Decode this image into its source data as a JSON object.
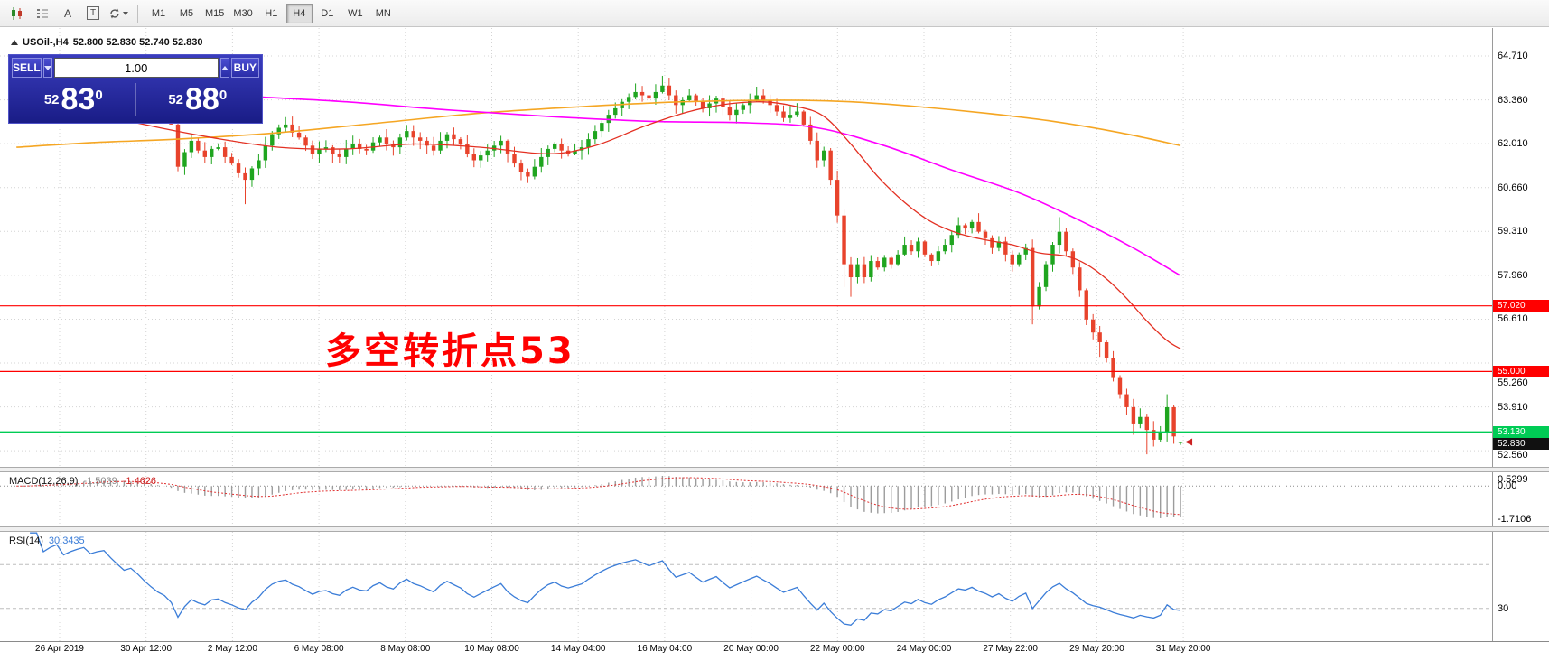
{
  "toolbar": {
    "icons": [
      {
        "name": "candlestick-chart-icon"
      },
      {
        "name": "indicators-icon"
      },
      {
        "name": "text-label-icon",
        "label": "A"
      },
      {
        "name": "textbox-icon",
        "label": "T"
      },
      {
        "name": "cycle-icon"
      }
    ],
    "timeframes": [
      "M1",
      "M5",
      "M15",
      "M30",
      "H1",
      "H4",
      "D1",
      "W1",
      "MN"
    ],
    "active_timeframe": "H4"
  },
  "chart": {
    "symbol_period": "USOil-,H4",
    "ohlc": "52.800 52.830 52.740 52.830"
  },
  "trade_panel": {
    "sell_label": "SELL",
    "buy_label": "BUY",
    "volume": "1.00",
    "sell_price": {
      "small": "52",
      "big": "83",
      "sup": "0"
    },
    "buy_price": {
      "small": "52",
      "big": "88",
      "sup": "0"
    }
  },
  "annotation": {
    "text": "多空转折点53",
    "color": "#ff0000"
  },
  "chart_data": {
    "type": "candlestick",
    "symbol": "USOil-",
    "period": "H4",
    "last_candle": {
      "open": 52.8,
      "high": 52.83,
      "low": 52.74,
      "close": 52.83
    },
    "colors": {
      "up": "#1fa51f",
      "down": "#e8432c"
    },
    "price_axis": {
      "labels": [
        "64.710",
        "63.360",
        "62.010",
        "60.660",
        "59.310",
        "57.960",
        "56.610",
        "55.260",
        "53.910",
        "52.560"
      ],
      "step": 1.35
    },
    "time_axis": [
      "26 Apr 2019",
      "30 Apr 12:00",
      "2 May 12:00",
      "6 May 08:00",
      "8 May 08:00",
      "10 May 08:00",
      "14 May 04:00",
      "16 May 04:00",
      "20 May 00:00",
      "22 May 00:00",
      "24 May 00:00",
      "27 May 22:00",
      "29 May 20:00",
      "31 May 20:00"
    ],
    "hlines": [
      {
        "price": 57.02,
        "label": "57.020",
        "color": "#FF0000",
        "width": 1.2
      },
      {
        "price": 55.0,
        "label": "55.000",
        "color": "#FF0000",
        "width": 1.2
      },
      {
        "price": 53.13,
        "label": "53.130",
        "color": "#00CC55",
        "width": 2
      },
      {
        "price": 52.83,
        "label": "52.830",
        "color": "#A8A8A8",
        "width": 1,
        "dash": "4,3",
        "label_bg": "#111111"
      }
    ],
    "pre_closes": [
      63.05,
      63.2,
      63.35,
      63.5,
      63.4,
      63.55,
      63.7,
      63.6,
      63.75,
      63.9,
      64.05,
      63.95,
      64.1,
      64.2,
      64.05,
      63.9,
      63.75,
      63.85,
      63.7,
      63.5,
      63.3,
      63.1,
      62.95,
      62.6
    ],
    "closes": [
      61.3,
      61.75,
      62.1,
      61.8,
      61.6,
      61.85,
      61.9,
      61.6,
      61.4,
      61.1,
      60.9,
      61.25,
      61.5,
      61.95,
      62.3,
      62.5,
      62.6,
      62.35,
      62.2,
      61.95,
      61.7,
      61.85,
      61.9,
      61.7,
      61.6,
      61.85,
      62.0,
      61.85,
      61.8,
      62.05,
      62.2,
      62.0,
      61.9,
      62.2,
      62.4,
      62.2,
      62.1,
      61.95,
      61.8,
      62.1,
      62.3,
      62.15,
      62.0,
      61.7,
      61.5,
      61.65,
      61.8,
      61.95,
      62.1,
      61.7,
      61.4,
      61.15,
      61.0,
      61.3,
      61.6,
      61.85,
      62.0,
      61.8,
      61.7,
      61.8,
      61.9,
      62.15,
      62.4,
      62.65,
      62.9,
      63.1,
      63.3,
      63.45,
      63.6,
      63.5,
      63.4,
      63.6,
      63.8,
      63.5,
      63.2,
      63.35,
      63.5,
      63.3,
      63.1,
      63.25,
      63.4,
      63.15,
      62.9,
      63.05,
      63.2,
      63.35,
      63.5,
      63.35,
      63.2,
      63.0,
      62.8,
      62.9,
      63.0,
      62.6,
      62.1,
      61.5,
      61.8,
      60.9,
      59.8,
      58.3,
      57.9,
      58.3,
      57.9,
      58.4,
      58.2,
      58.5,
      58.3,
      58.6,
      58.9,
      58.7,
      59.0,
      58.6,
      58.4,
      58.7,
      58.9,
      59.2,
      59.5,
      59.4,
      59.6,
      59.3,
      59.1,
      58.8,
      59.0,
      58.6,
      58.3,
      58.6,
      58.8,
      57.0,
      57.6,
      58.3,
      58.9,
      59.3,
      58.7,
      58.2,
      57.5,
      56.6,
      56.2,
      55.9,
      55.4,
      54.8,
      54.3,
      53.9,
      53.4,
      53.6,
      53.2,
      52.9,
      53.1,
      53.9,
      53.0,
      52.83
    ],
    "wick_overrides": {
      "10": {
        "l": 60.15
      },
      "72": {
        "h": 64.1
      },
      "99": {
        "l": 57.6
      },
      "100": {
        "l": 57.3
      },
      "116": {
        "h": 59.75
      },
      "127": {
        "l": 56.45
      },
      "131": {
        "h": 59.75
      },
      "137": {
        "h": 56.4,
        "l": 55.45
      },
      "142": {
        "l": 53.05
      },
      "144": {
        "l": 52.45
      },
      "147": {
        "h": 54.3
      },
      "149": {
        "o": 52.8,
        "h": 52.83,
        "l": 52.74,
        "c": 52.83
      }
    },
    "ma_lines": [
      {
        "name": "ma-slow-orange",
        "color": "#f5a623",
        "width": 1.6,
        "points": [
          [
            -24,
            61.9
          ],
          [
            -12,
            62.05
          ],
          [
            0,
            62.15
          ],
          [
            15,
            62.35
          ],
          [
            30,
            62.65
          ],
          [
            45,
            62.95
          ],
          [
            60,
            63.15
          ],
          [
            75,
            63.3
          ],
          [
            90,
            63.35
          ],
          [
            100,
            63.3
          ],
          [
            110,
            63.15
          ],
          [
            120,
            62.95
          ],
          [
            130,
            62.7
          ],
          [
            140,
            62.35
          ],
          [
            149,
            61.95
          ]
        ]
      },
      {
        "name": "ma-medium-magenta",
        "color": "#ff00ff",
        "width": 1.6,
        "points": [
          [
            -24,
            63.95
          ],
          [
            -12,
            63.75
          ],
          [
            0,
            63.6
          ],
          [
            12,
            63.45
          ],
          [
            25,
            63.3
          ],
          [
            40,
            63.05
          ],
          [
            55,
            62.85
          ],
          [
            70,
            62.7
          ],
          [
            85,
            62.65
          ],
          [
            95,
            62.5
          ],
          [
            105,
            61.95
          ],
          [
            115,
            61.2
          ],
          [
            125,
            60.5
          ],
          [
            134,
            59.65
          ],
          [
            142,
            58.8
          ],
          [
            149,
            57.95
          ]
        ]
      },
      {
        "name": "ma-fast-red",
        "color": "#e33022",
        "width": 1.3,
        "points": [
          [
            -24,
            63.6
          ],
          [
            -14,
            63.05
          ],
          [
            -5,
            62.6
          ],
          [
            5,
            62.2
          ],
          [
            15,
            61.9
          ],
          [
            25,
            61.85
          ],
          [
            35,
            62.0
          ],
          [
            45,
            61.9
          ],
          [
            55,
            61.7
          ],
          [
            62,
            61.95
          ],
          [
            70,
            62.6
          ],
          [
            78,
            63.1
          ],
          [
            86,
            63.3
          ],
          [
            92,
            63.15
          ],
          [
            96,
            62.85
          ],
          [
            100,
            62.0
          ],
          [
            104,
            61.0
          ],
          [
            108,
            60.2
          ],
          [
            112,
            59.6
          ],
          [
            116,
            59.25
          ],
          [
            120,
            59.05
          ],
          [
            124,
            58.9
          ],
          [
            128,
            58.65
          ],
          [
            132,
            58.55
          ],
          [
            135,
            58.3
          ],
          [
            138,
            57.85
          ],
          [
            141,
            57.25
          ],
          [
            144,
            56.55
          ],
          [
            147,
            55.95
          ],
          [
            149,
            55.7
          ]
        ]
      }
    ],
    "indicators": {
      "macd": {
        "label": "MACD(12,26,9)",
        "value_main": "-1.5039",
        "value_signal": "-1.4626",
        "params": [
          12,
          26,
          9
        ],
        "histogram_color": "#9c9c9c",
        "signal_color": "#e03131",
        "scale": {
          "max": 0.5299,
          "min": -1.7106
        },
        "axis_labels": [
          "0.5299",
          "0.00",
          "-1.7106"
        ]
      },
      "rsi": {
        "label": "RSI(14)",
        "value": "30.3435",
        "period": 14,
        "color": "#3b7dd8",
        "levels": [
          30,
          70
        ],
        "axis_label": "30"
      }
    }
  }
}
